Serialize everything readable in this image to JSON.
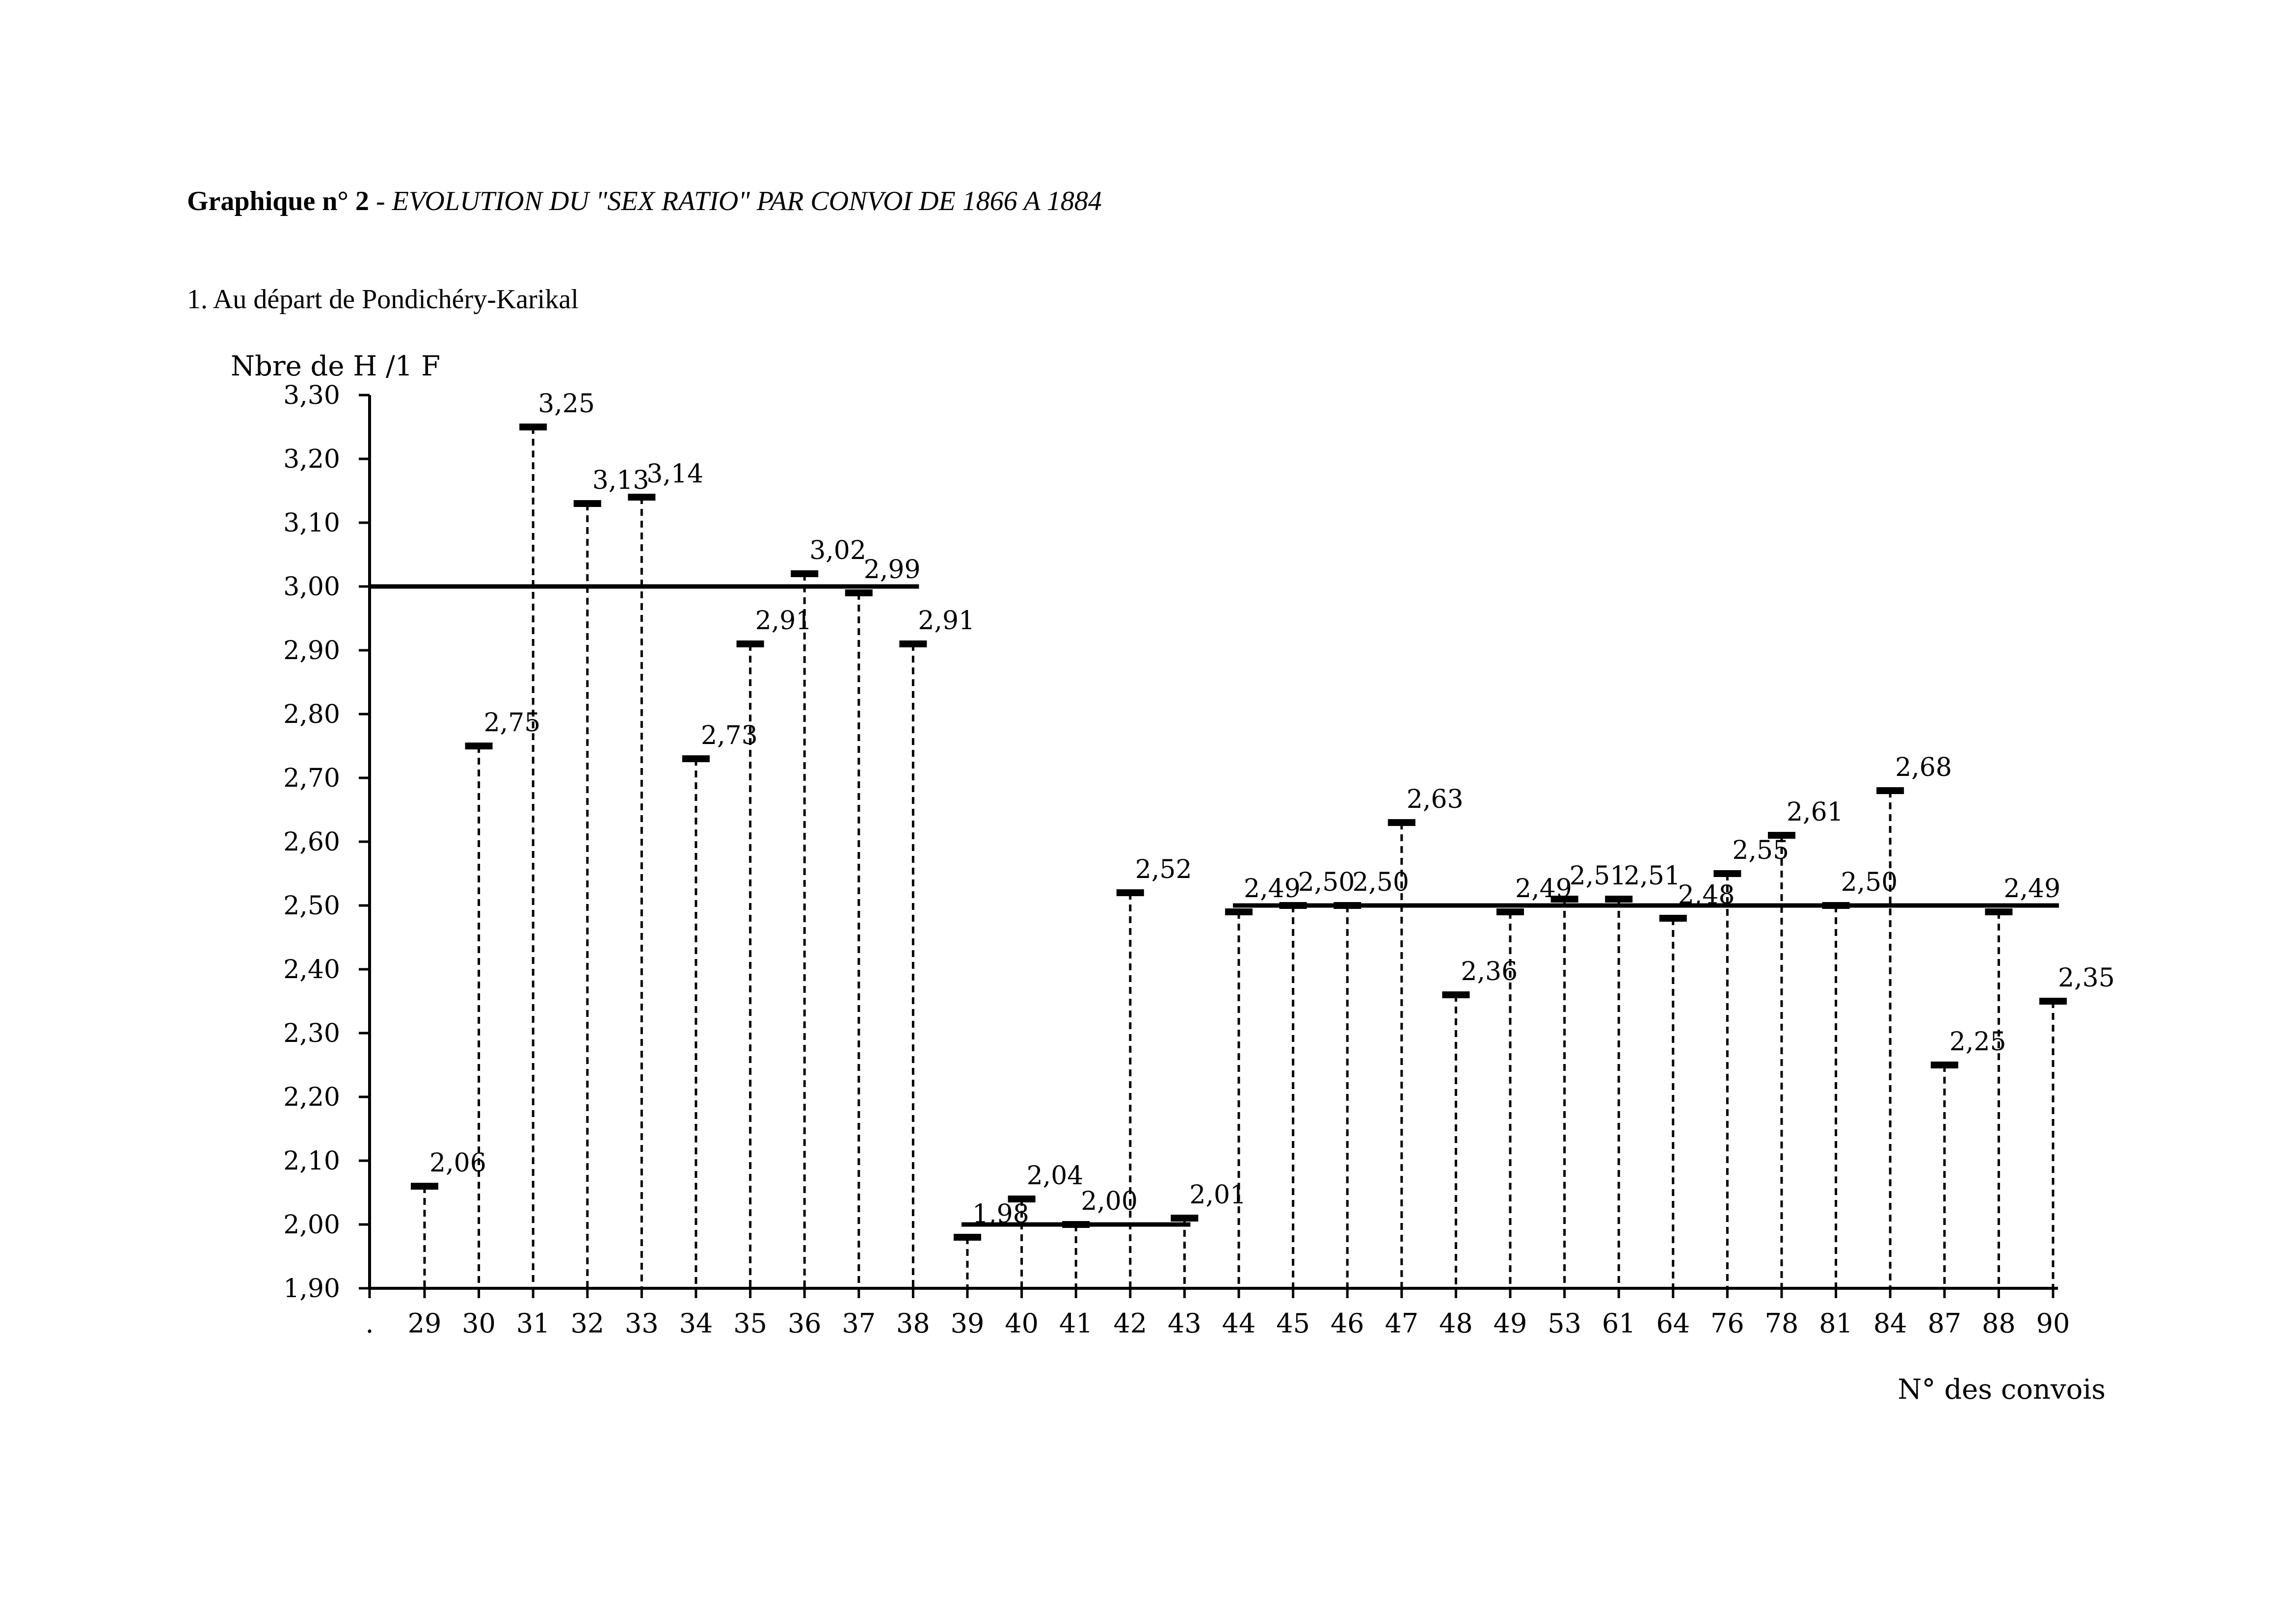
{
  "heading": {
    "prefix": "Graphique n° 2",
    "separator": " - ",
    "title": "EVOLUTION DU \"SEX RATIO\" PAR CONVOI DE 1866 A 1884"
  },
  "subheading": "1. Au départ de Pondichéry-Karikal",
  "chart_data": {
    "type": "scatter",
    "ylabel": "Nbre de H /1 F",
    "xlabel": "N° des convois",
    "ylim": [
      1.9,
      3.3
    ],
    "yticks": [
      "1,90",
      "2,00",
      "2,10",
      "2,20",
      "2,30",
      "2,40",
      "2,50",
      "2,60",
      "2,70",
      "2,80",
      "2,90",
      "3,00",
      "3,10",
      "3,20",
      "3,30"
    ],
    "first_tick_label": ".",
    "categories": [
      "29",
      "30",
      "31",
      "32",
      "33",
      "34",
      "35",
      "36",
      "37",
      "38",
      "39",
      "40",
      "41",
      "42",
      "43",
      "44",
      "45",
      "46",
      "47",
      "48",
      "49",
      "53",
      "61",
      "64",
      "76",
      "78",
      "81",
      "84",
      "87",
      "88",
      "90"
    ],
    "values": [
      2.06,
      2.75,
      3.25,
      3.13,
      3.14,
      2.73,
      2.91,
      3.02,
      2.99,
      2.91,
      1.98,
      2.04,
      2.0,
      2.52,
      2.01,
      2.49,
      2.5,
      2.5,
      2.63,
      2.36,
      2.49,
      2.51,
      2.51,
      2.48,
      2.55,
      2.61,
      2.5,
      2.68,
      2.25,
      2.49,
      2.35
    ],
    "data_labels": [
      "2,06",
      "2,75",
      "3,25",
      "3,13",
      "3,14",
      "2,73",
      "2,91",
      "3,02",
      "2,99",
      "2,91",
      "1,98",
      "2,04",
      "2,00",
      "2,52",
      "2,01",
      "2,49",
      "2,50",
      "2,50",
      "2,63",
      "2,36",
      "2,49",
      "2,51",
      "2,51",
      "2,48",
      "2,55",
      "2,61",
      "2,50",
      "2,68",
      "2,25",
      "2,49",
      "2,35"
    ],
    "reference_lines": [
      {
        "value": 3.0,
        "from": "29",
        "to": "38"
      },
      {
        "value": 2.0,
        "from": "39",
        "to": "43"
      },
      {
        "value": 2.5,
        "from": "44",
        "to": "90"
      }
    ],
    "grid": false,
    "legend": "none"
  }
}
